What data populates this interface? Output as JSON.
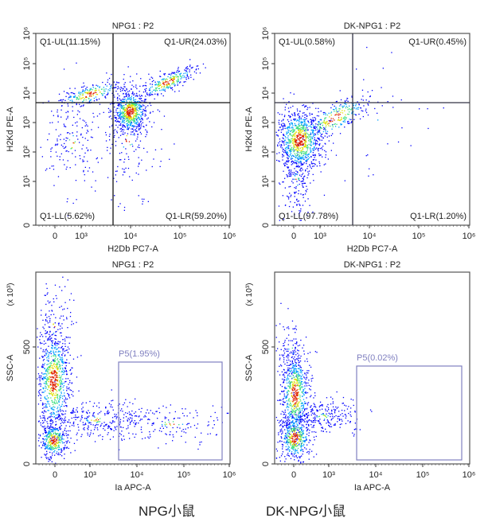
{
  "chart_data": [
    {
      "type": "scatter",
      "title": "NPG1 : P2",
      "xlabel": "H2Db PC7-A",
      "ylabel": "H2Kd PE-A",
      "xscale": "log",
      "yscale": "log",
      "x_ticks": [
        "0",
        "10³",
        "10⁴",
        "10⁵",
        "10⁶"
      ],
      "y_ticks": [
        "0",
        "10¹",
        "10²",
        "10³",
        "10⁴",
        "10⁵",
        "10⁶"
      ],
      "quadrants": {
        "UL": "Q1-UL(11.15%)",
        "UR": "Q1-UR(24.03%)",
        "LL": "Q1-LL(5.62%)",
        "LR": "Q1-LR(59.20%)"
      },
      "quadrant_values": {
        "UL": 11.15,
        "UR": 24.03,
        "LL": 5.62,
        "LR": 59.2
      }
    },
    {
      "type": "scatter",
      "title": "DK-NPG1 : P2",
      "xlabel": "H2Db PC7-A",
      "ylabel": "H2Kd PE-A",
      "xscale": "log",
      "yscale": "log",
      "x_ticks": [
        "0",
        "10³",
        "10⁴",
        "10⁵",
        "10⁶"
      ],
      "y_ticks": [
        "0",
        "10¹",
        "10²",
        "10³",
        "10⁴",
        "10⁵",
        "10⁶"
      ],
      "quadrants": {
        "UL": "Q1-UL(0.58%)",
        "UR": "Q1-UR(0.45%)",
        "LL": "Q1-LL(97.78%)",
        "LR": "Q1-LR(1.20%)"
      },
      "quadrant_values": {
        "UL": 0.58,
        "UR": 0.45,
        "LL": 97.78,
        "LR": 1.2
      }
    },
    {
      "type": "scatter",
      "title": "NPG1 : P2",
      "xlabel": "Ia APC-A",
      "ylabel": "SSC-A",
      "y_unit": "(x 10³)",
      "xscale": "log",
      "x_ticks": [
        "0",
        "10³",
        "10⁴",
        "10⁵",
        "10⁶"
      ],
      "y_ticks": [
        "0",
        "500"
      ],
      "gate": "P5(1.95%)",
      "gate_value": 1.95
    },
    {
      "type": "scatter",
      "title": "DK-NPG1 : P2",
      "xlabel": "Ia APC-A",
      "ylabel": "SSC-A",
      "y_unit": "(x 10³)",
      "xscale": "log",
      "x_ticks": [
        "0",
        "10³",
        "10⁴",
        "10⁵",
        "10⁶"
      ],
      "y_ticks": [
        "0",
        "500"
      ],
      "gate": "P5(0.02%)",
      "gate_value": 0.02
    }
  ],
  "captions": [
    "NPG小鼠",
    "DK-NPG小鼠"
  ],
  "colors": {
    "gate": "#8080c0",
    "density": [
      "#0000ff",
      "#00a0ff",
      "#40e080",
      "#e0e000",
      "#e02000"
    ]
  }
}
